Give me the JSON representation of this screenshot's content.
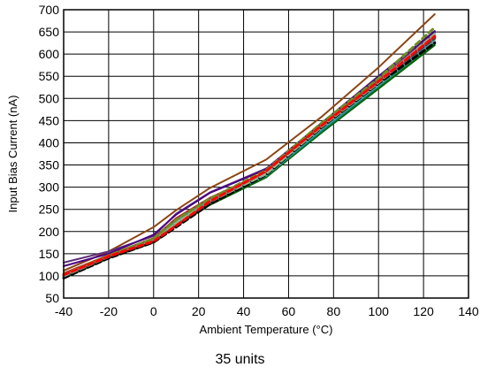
{
  "chart_data": {
    "type": "line",
    "xlabel": "Ambient Temperature (°C)",
    "ylabel": "Input Bias Current (nA)",
    "caption": "35 units",
    "xlim": [
      -40,
      140
    ],
    "ylim": [
      50,
      700
    ],
    "x_ticks": [
      -40,
      -20,
      0,
      20,
      40,
      60,
      80,
      100,
      120,
      140
    ],
    "y_ticks": [
      50,
      100,
      150,
      200,
      250,
      300,
      350,
      400,
      450,
      500,
      550,
      600,
      650,
      700
    ],
    "grid": true,
    "x": [
      -40,
      -20,
      0,
      10,
      25,
      50,
      75,
      100,
      125
    ],
    "series": [
      {
        "color": "#8b4513",
        "style": "solid",
        "values": [
          112,
          155,
          210,
          248,
          298,
          362,
          460,
          570,
          690
        ]
      },
      {
        "color": "#5e2d79",
        "style": "solid",
        "values": [
          130,
          155,
          190,
          240,
          288,
          342,
          445,
          545,
          648
        ]
      },
      {
        "color": "#4b0082",
        "style": "solid",
        "values": [
          122,
          150,
          193,
          238,
          287,
          340,
          446,
          550,
          652
        ]
      },
      {
        "color": "#808080",
        "style": "solid",
        "values": [
          98,
          145,
          182,
          220,
          268,
          332,
          432,
          532,
          640
        ]
      },
      {
        "color": "#2e8b57",
        "style": "solid",
        "values": [
          96,
          142,
          178,
          216,
          262,
          324,
          426,
          525,
          625
        ]
      },
      {
        "color": "#006400",
        "style": "solid",
        "values": [
          94,
          140,
          175,
          212,
          260,
          322,
          424,
          522,
          620
        ]
      },
      {
        "color": "#556b2f",
        "style": "solid",
        "values": [
          100,
          143,
          178,
          215,
          270,
          330,
          436,
          535,
          634
        ]
      },
      {
        "color": "#4682b4",
        "style": "solid",
        "values": [
          105,
          146,
          183,
          225,
          272,
          330,
          435,
          535,
          635
        ]
      },
      {
        "color": "#008b8b",
        "style": "solid",
        "values": [
          98,
          144,
          180,
          218,
          265,
          325,
          428,
          528,
          628
        ]
      },
      {
        "color": "#5f9ea0",
        "style": "solid",
        "values": [
          102,
          146,
          182,
          220,
          268,
          326,
          432,
          530,
          630
        ]
      },
      {
        "color": "#b22222",
        "style": "solid",
        "values": [
          106,
          147,
          185,
          230,
          276,
          334,
          442,
          540,
          642
        ]
      },
      {
        "color": "#000000",
        "style": "dashed",
        "values": [
          95,
          140,
          176,
          210,
          262,
          328,
          436,
          534,
          625
        ]
      },
      {
        "color": "#404040",
        "style": "dashed",
        "values": [
          99,
          143,
          180,
          215,
          266,
          332,
          440,
          538,
          636
        ]
      },
      {
        "color": "#a0a0a0",
        "style": "dashed",
        "values": [
          101,
          145,
          183,
          222,
          270,
          334,
          442,
          540,
          640
        ]
      },
      {
        "color": "#8fbc8f",
        "style": "dashed",
        "values": [
          100,
          144,
          180,
          218,
          268,
          330,
          438,
          536,
          645
        ]
      },
      {
        "color": "#6b8e23",
        "style": "dashed",
        "values": [
          103,
          146,
          184,
          226,
          274,
          338,
          446,
          545,
          660
        ]
      },
      {
        "color": "#ff0000",
        "style": "dashed",
        "values": [
          102,
          144,
          178,
          213,
          268,
          336,
          440,
          538,
          640
        ]
      }
    ]
  }
}
